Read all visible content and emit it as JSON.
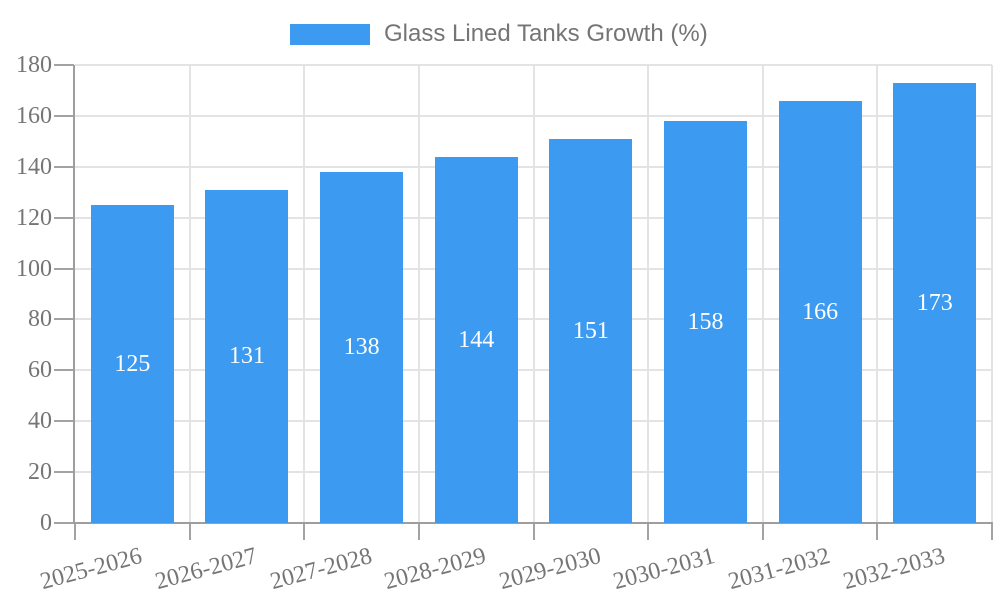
{
  "legend": {
    "label": "Glass Lined Tanks Growth (%)"
  },
  "chart_data": {
    "type": "bar",
    "title": "Glass Lined Tanks Growth (%)",
    "categories": [
      "2025-2026",
      "2026-2027",
      "2027-2028",
      "2028-2029",
      "2029-2030",
      "2030-2031",
      "2031-2032",
      "2032-2033"
    ],
    "values": [
      125,
      131,
      138,
      144,
      151,
      158,
      166,
      173
    ],
    "value_labels": [
      "125",
      "131",
      "138",
      "144",
      "151",
      "158",
      "166",
      "173"
    ],
    "xlabel": "",
    "ylabel": "",
    "ylim": [
      0,
      180
    ],
    "yticks": [
      0,
      20,
      40,
      60,
      80,
      100,
      120,
      140,
      160,
      180
    ],
    "grid": true,
    "legend_position": "top-center",
    "bar_color": "#3c9af0",
    "value_label_color": "#ffffff",
    "tick_label_color": "#757575",
    "grid_color": "#e3e3e3",
    "axis_color": "#9e9e9e",
    "tick_color": "#a3a3a3"
  }
}
